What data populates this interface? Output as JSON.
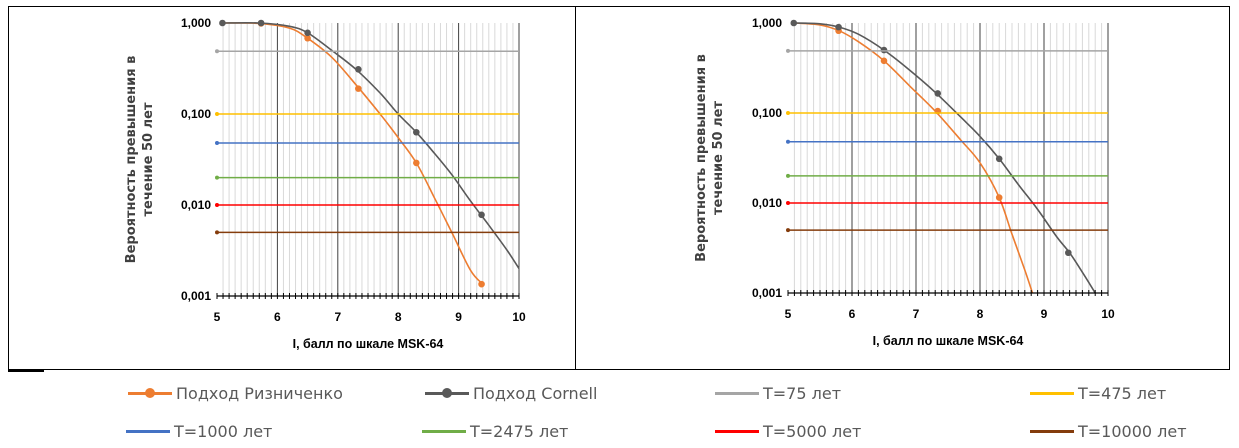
{
  "chart_data": [
    {
      "type": "line",
      "panel": "left",
      "xlabel": "I, балл по шкале MSK-64",
      "ylabel_lines": [
        "Вероятность превышения в",
        "течение 50 лет"
      ],
      "xlim": [
        5,
        10
      ],
      "ylim": [
        0.001,
        1
      ],
      "y_scale": "log",
      "x_ticks": [
        "5",
        "6",
        "7",
        "8",
        "9",
        "10"
      ],
      "y_ticks": [
        "0,001",
        "0,010",
        "0,100",
        "1,000"
      ],
      "grid": true,
      "series": [
        {
          "name": "Подход Ризниченко",
          "color": "#ED7D31",
          "markers": true,
          "x": [
            5.1,
            5.7,
            6.2,
            6.5,
            6.9,
            7.3,
            7.7,
            8.0,
            8.3,
            8.6,
            8.9,
            9.2,
            9.4
          ],
          "y": [
            1.0,
            0.99,
            0.88,
            0.68,
            0.42,
            0.21,
            0.1,
            0.055,
            0.029,
            0.012,
            0.0048,
            0.0019,
            0.00135
          ],
          "marker_x": [
            5.73,
            6.5,
            7.34,
            8.3,
            9.38
          ],
          "marker_y": [
            0.99,
            0.68,
            0.19,
            0.029,
            0.00135
          ]
        },
        {
          "name": "Подход Cornell",
          "color": "#595959",
          "markers": true,
          "x": [
            5.1,
            5.7,
            6.2,
            6.5,
            6.9,
            7.3,
            7.7,
            8.0,
            8.3,
            8.6,
            8.9,
            9.2,
            9.5,
            9.8,
            10.0
          ],
          "y": [
            1.0,
            1.0,
            0.92,
            0.78,
            0.5,
            0.31,
            0.17,
            0.1,
            0.063,
            0.037,
            0.021,
            0.011,
            0.006,
            0.0032,
            0.002
          ],
          "marker_x": [
            5.09,
            5.73,
            6.5,
            7.34,
            8.3,
            9.38
          ],
          "marker_y": [
            1.0,
            1.0,
            0.78,
            0.31,
            0.063,
            0.0078
          ]
        },
        {
          "name": "T=75 лет",
          "color": "#A5A5A5",
          "x": [
            5,
            10
          ],
          "y": [
            0.49,
            0.49
          ]
        },
        {
          "name": "T=475 лет",
          "color": "#FFC000",
          "x": [
            5,
            10
          ],
          "y": [
            0.1,
            0.1
          ]
        },
        {
          "name": "T=1000 лет",
          "color": "#4472C4",
          "x": [
            5,
            10
          ],
          "y": [
            0.048,
            0.048
          ]
        },
        {
          "name": "T=2475 лет",
          "color": "#70AD47",
          "x": [
            5,
            10
          ],
          "y": [
            0.02,
            0.02
          ]
        },
        {
          "name": "T=5000 лет",
          "color": "#FF0000",
          "x": [
            5,
            10
          ],
          "y": [
            0.01,
            0.01
          ]
        },
        {
          "name": "T=10000 лет",
          "color": "#843C0C",
          "x": [
            5,
            10
          ],
          "y": [
            0.005,
            0.005
          ]
        }
      ]
    },
    {
      "type": "line",
      "panel": "right",
      "xlabel": "I, балл по шкале MSK-64",
      "ylabel_lines": [
        "Вероятность превышения в",
        "течение 50 лет"
      ],
      "xlim": [
        5,
        10
      ],
      "ylim": [
        0.001,
        1
      ],
      "y_scale": "log",
      "x_ticks": [
        "5",
        "6",
        "7",
        "8",
        "9",
        "10"
      ],
      "y_ticks": [
        "0,001",
        "0,010",
        "0,100",
        "1,000"
      ],
      "grid": true,
      "series": [
        {
          "name": "Подход Ризниченко",
          "color": "#ED7D31",
          "markers": true,
          "x": [
            5.1,
            5.5,
            5.8,
            6.1,
            6.5,
            6.9,
            7.3,
            7.7,
            8.0,
            8.3,
            8.5,
            8.7,
            8.82
          ],
          "y": [
            1.0,
            0.95,
            0.82,
            0.62,
            0.38,
            0.2,
            0.105,
            0.05,
            0.028,
            0.0115,
            0.0045,
            0.0018,
            0.001
          ],
          "marker_x": [
            5.79,
            6.5,
            7.34,
            8.3
          ],
          "marker_y": [
            0.82,
            0.38,
            0.105,
            0.0115
          ]
        },
        {
          "name": "Подход Cornell",
          "color": "#595959",
          "markers": true,
          "x": [
            5.1,
            5.5,
            5.8,
            6.1,
            6.5,
            6.9,
            7.3,
            7.7,
            8.0,
            8.3,
            8.6,
            8.9,
            9.2,
            9.4,
            9.6,
            9.8
          ],
          "y": [
            1.0,
            0.98,
            0.9,
            0.75,
            0.5,
            0.3,
            0.17,
            0.09,
            0.055,
            0.031,
            0.016,
            0.0085,
            0.0042,
            0.0028,
            0.0017,
            0.001
          ],
          "marker_x": [
            5.09,
            5.79,
            6.5,
            7.34,
            8.3,
            9.38
          ],
          "marker_y": [
            1.0,
            0.9,
            0.5,
            0.165,
            0.031,
            0.0028
          ]
        },
        {
          "name": "T=75 лет",
          "color": "#A5A5A5",
          "x": [
            5,
            10
          ],
          "y": [
            0.49,
            0.49
          ]
        },
        {
          "name": "T=475 лет",
          "color": "#FFC000",
          "x": [
            5,
            10
          ],
          "y": [
            0.1,
            0.1
          ]
        },
        {
          "name": "T=1000 лет",
          "color": "#4472C4",
          "x": [
            5,
            10
          ],
          "y": [
            0.048,
            0.048
          ]
        },
        {
          "name": "T=2475 лет",
          "color": "#70AD47",
          "x": [
            5,
            10
          ],
          "y": [
            0.02,
            0.02
          ]
        },
        {
          "name": "T=5000 лет",
          "color": "#FF0000",
          "x": [
            5,
            10
          ],
          "y": [
            0.01,
            0.01
          ]
        },
        {
          "name": "T=10000 лет",
          "color": "#843C0C",
          "x": [
            5,
            10
          ],
          "y": [
            0.005,
            0.005
          ]
        }
      ]
    }
  ],
  "legend": {
    "placement": "bottom",
    "items": [
      {
        "label": "Подход Ризниченко",
        "color": "#ED7D31",
        "marker": true
      },
      {
        "label": "Подход Cornell",
        "color": "#595959",
        "marker": true
      },
      {
        "label": "T=75 лет",
        "color": "#A5A5A5",
        "marker": false
      },
      {
        "label": "T=475 лет",
        "color": "#FFC000",
        "marker": false
      },
      {
        "label": "T=1000 лет",
        "color": "#4472C4",
        "marker": false
      },
      {
        "label": "T=2475 лет",
        "color": "#70AD47",
        "marker": false
      },
      {
        "label": "T=5000 лет",
        "color": "#FF0000",
        "marker": false
      },
      {
        "label": "T=10000 лет",
        "color": "#843C0C",
        "marker": false
      }
    ]
  }
}
